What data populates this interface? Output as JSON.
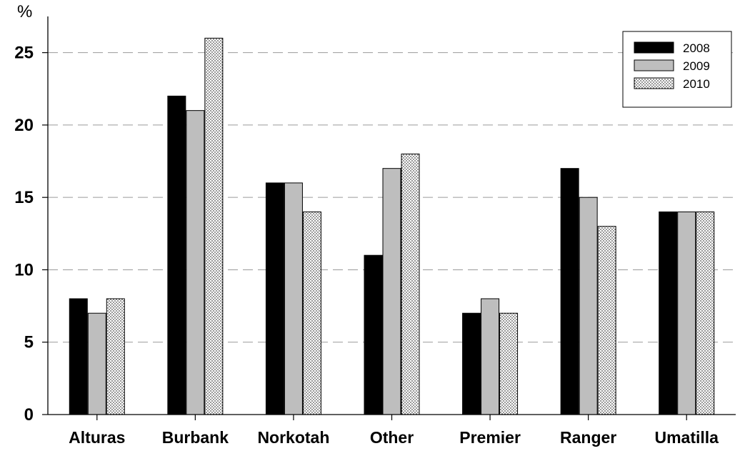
{
  "chart_data": {
    "type": "bar",
    "ylabel": "%",
    "ylim": [
      0,
      27.5
    ],
    "yticks": [
      0,
      5,
      10,
      15,
      20,
      25
    ],
    "grid": "horizontal dashed",
    "legend_position": "top-right",
    "categories": [
      "Alturas",
      "Burbank",
      "Norkotah",
      "Other",
      "Premier",
      "Ranger",
      "Umatilla"
    ],
    "series": [
      {
        "name": "2008",
        "fill": "solid black",
        "color": "#000000",
        "values": [
          8,
          22,
          16,
          11,
          7,
          17,
          14
        ]
      },
      {
        "name": "2009",
        "fill": "solid gray",
        "color": "#bebebe",
        "values": [
          7,
          21,
          16,
          17,
          8,
          15,
          14
        ]
      },
      {
        "name": "2010",
        "fill": "white with black dots",
        "color": "#ffffff",
        "values": [
          8,
          26,
          14,
          18,
          7,
          13,
          14
        ]
      }
    ]
  }
}
